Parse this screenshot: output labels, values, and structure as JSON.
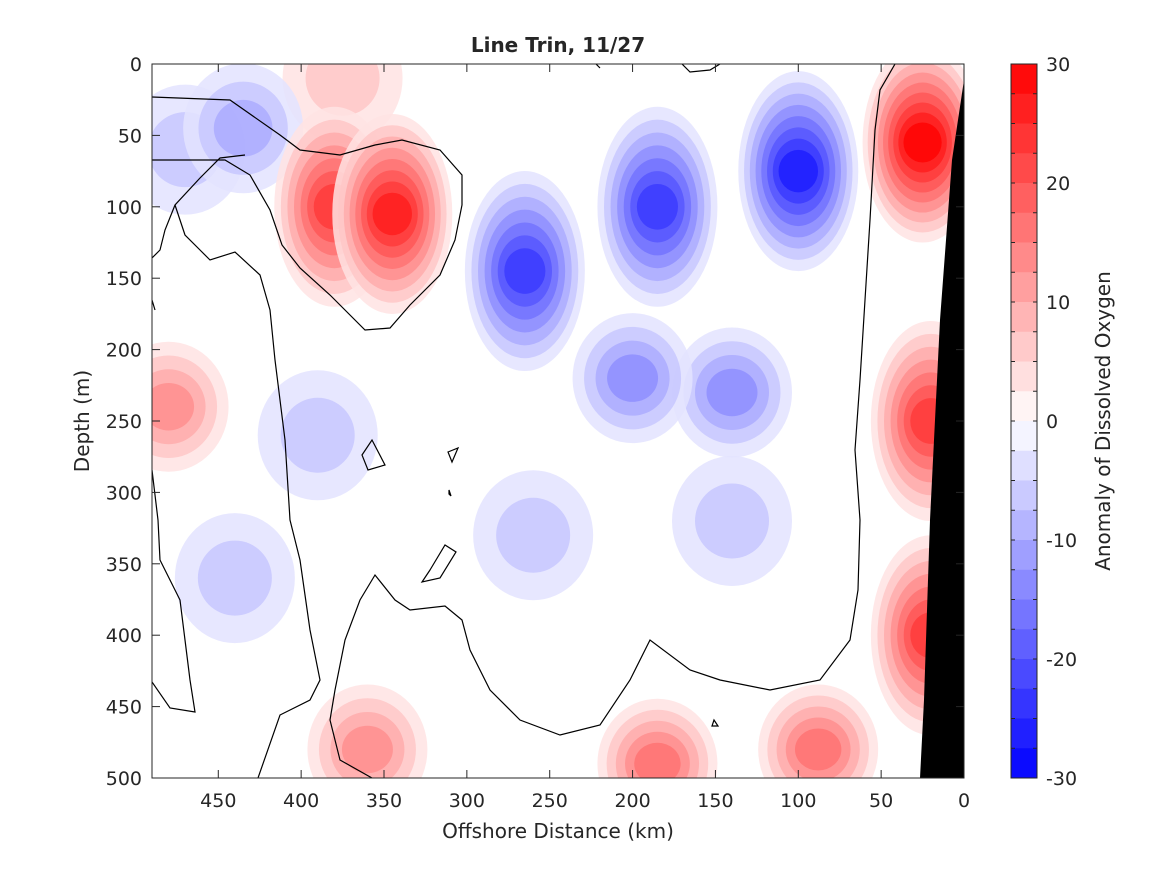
{
  "chart_data": {
    "type": "heatmap",
    "title": "Line Trin, 11/27",
    "xlabel": "Offshore Distance (km)",
    "ylabel": "Depth (m)",
    "colorbar_label": "Anomaly of Dissolved Oxygen",
    "x_reversed": true,
    "y_reversed": true,
    "xlim": [
      0,
      490
    ],
    "ylim": [
      0,
      500
    ],
    "clim": [
      -30,
      30
    ],
    "x_ticks": [
      450,
      400,
      350,
      300,
      250,
      200,
      150,
      100,
      50,
      0
    ],
    "x_tick_labels": [
      "450",
      "400",
      "350",
      "300",
      "250",
      "200",
      "150",
      "100",
      "50",
      "0"
    ],
    "y_ticks": [
      0,
      50,
      100,
      150,
      200,
      250,
      300,
      350,
      400,
      450,
      500
    ],
    "y_tick_labels": [
      "0",
      "50",
      "100",
      "150",
      "200",
      "250",
      "300",
      "350",
      "400",
      "450",
      "500"
    ],
    "colorbar_ticks": [
      30,
      20,
      10,
      0,
      -10,
      -20,
      -30
    ],
    "colorbar_tick_labels": [
      "30",
      "20",
      "10",
      "0",
      "-10",
      "-20",
      "-30"
    ],
    "colors": {
      "positive": "#ff0000",
      "negative": "#0000ff",
      "zero": "#ffffff",
      "land": "#000000"
    },
    "features": [
      {
        "kind": "oxygen-maximum",
        "x": 25,
        "y": 55,
        "value": 30
      },
      {
        "kind": "oxygen-maximum",
        "x": 20,
        "y": 250,
        "value": 22
      },
      {
        "kind": "oxygen-maximum",
        "x": 20,
        "y": 400,
        "value": 22
      },
      {
        "kind": "oxygen-maximum",
        "x": 380,
        "y": 100,
        "value": 23
      },
      {
        "kind": "oxygen-maximum",
        "x": 345,
        "y": 105,
        "value": 25
      },
      {
        "kind": "oxygen-maximum",
        "x": 480,
        "y": 240,
        "value": 14
      },
      {
        "kind": "oxygen-maximum",
        "x": 360,
        "y": 480,
        "value": 12
      },
      {
        "kind": "oxygen-maximum",
        "x": 185,
        "y": 490,
        "value": 16
      },
      {
        "kind": "oxygen-maximum",
        "x": 88,
        "y": 480,
        "value": 16
      },
      {
        "kind": "oxygen-maximum",
        "x": 375,
        "y": 10,
        "value": 8
      },
      {
        "kind": "oxygen-minimum",
        "x": 100,
        "y": 75,
        "value": -28
      },
      {
        "kind": "oxygen-minimum",
        "x": 265,
        "y": 145,
        "value": -24
      },
      {
        "kind": "oxygen-minimum",
        "x": 185,
        "y": 100,
        "value": -22
      },
      {
        "kind": "oxygen-minimum",
        "x": 200,
        "y": 220,
        "value": -14
      },
      {
        "kind": "oxygen-minimum",
        "x": 140,
        "y": 230,
        "value": -12
      },
      {
        "kind": "oxygen-minimum",
        "x": 140,
        "y": 320,
        "value": -8
      },
      {
        "kind": "oxygen-minimum",
        "x": 260,
        "y": 330,
        "value": -7
      },
      {
        "kind": "oxygen-minimum",
        "x": 435,
        "y": 45,
        "value": -10
      },
      {
        "kind": "oxygen-minimum",
        "x": 440,
        "y": 360,
        "value": -7
      },
      {
        "kind": "oxygen-minimum",
        "x": 390,
        "y": 260,
        "value": -6
      },
      {
        "kind": "oxygen-minimum",
        "x": 470,
        "y": 60,
        "value": -7
      }
    ],
    "land_boundary": [
      [
        0,
        0
      ],
      [
        28,
        500
      ]
    ]
  }
}
